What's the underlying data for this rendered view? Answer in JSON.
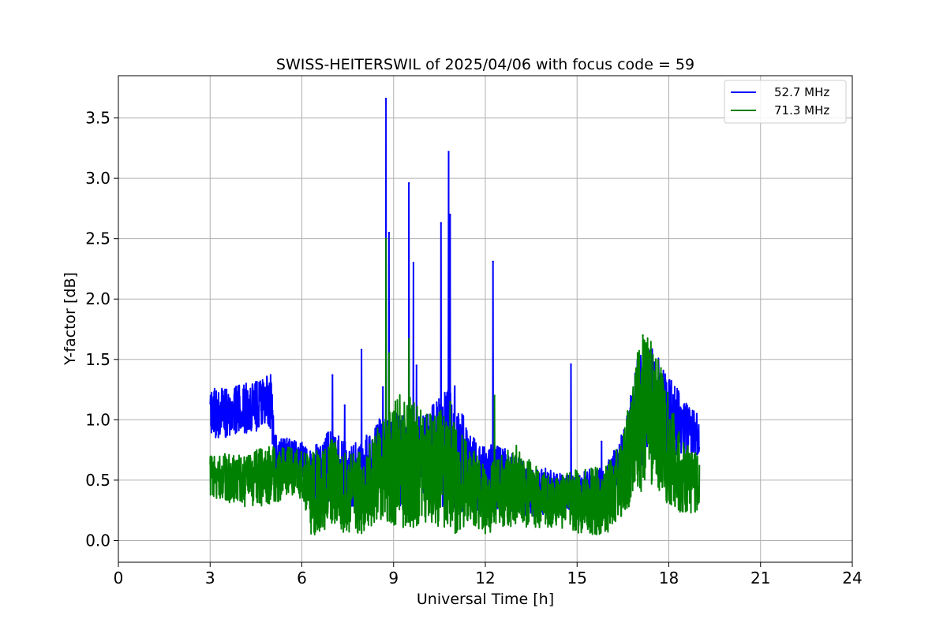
{
  "chart_data": {
    "type": "line",
    "title": "SWISS-HEITERSWIL of 2025/04/06 with focus code = 59",
    "xlabel": "Universal Time [h]",
    "ylabel": "Y-factor [dB]",
    "xlim": [
      0,
      24
    ],
    "ylim": [
      -0.18,
      3.85
    ],
    "xticks": [
      0,
      3,
      6,
      9,
      12,
      15,
      18,
      21,
      24
    ],
    "yticks": [
      0.0,
      0.5,
      1.0,
      1.5,
      2.0,
      2.5,
      3.0,
      3.5
    ],
    "xtick_labels": [
      "0",
      "3",
      "6",
      "9",
      "12",
      "15",
      "18",
      "21",
      "24"
    ],
    "ytick_labels": [
      "0.0",
      "0.5",
      "1.0",
      "1.5",
      "2.0",
      "2.5",
      "3.0",
      "3.5"
    ],
    "grid": true,
    "legend_position": "top-right",
    "series": [
      {
        "name": "52.7 MHz",
        "color": "#0000ff",
        "envelope": {
          "x": [
            3.0,
            3.5,
            4.0,
            4.5,
            5.0,
            5.1,
            5.5,
            6.0,
            6.2,
            6.5,
            7.0,
            7.5,
            8.0,
            8.5,
            9.0,
            9.5,
            10.0,
            10.5,
            11.0,
            11.5,
            12.0,
            12.5,
            13.0,
            13.5,
            14.0,
            14.5,
            15.0,
            15.5,
            16.0,
            16.5,
            17.0,
            17.5,
            18.0,
            18.5,
            19.0
          ],
          "low": [
            0.85,
            0.85,
            0.88,
            0.9,
            0.92,
            0.55,
            0.6,
            0.55,
            0.35,
            0.3,
            0.3,
            0.25,
            0.3,
            0.4,
            0.3,
            0.25,
            0.35,
            0.3,
            0.2,
            0.25,
            0.2,
            0.25,
            0.2,
            0.2,
            0.2,
            0.2,
            0.25,
            0.2,
            0.3,
            0.4,
            0.6,
            0.65,
            0.7,
            0.7,
            0.7
          ],
          "high": [
            1.25,
            1.28,
            1.3,
            1.32,
            1.38,
            0.88,
            0.85,
            0.82,
            0.75,
            0.8,
            0.95,
            0.8,
            0.85,
            1.0,
            1.1,
            1.0,
            1.05,
            1.2,
            1.3,
            0.9,
            0.8,
            0.8,
            0.7,
            0.6,
            0.6,
            0.55,
            0.55,
            0.6,
            0.65,
            0.9,
            1.55,
            1.6,
            1.4,
            1.15,
            1.05
          ]
        },
        "peaks": [
          [
            7.0,
            1.37
          ],
          [
            7.4,
            1.12
          ],
          [
            7.95,
            1.58
          ],
          [
            8.65,
            1.27
          ],
          [
            8.75,
            3.66
          ],
          [
            8.85,
            2.55
          ],
          [
            9.5,
            2.96
          ],
          [
            9.65,
            2.3
          ],
          [
            9.75,
            1.45
          ],
          [
            10.55,
            2.63
          ],
          [
            10.8,
            3.22
          ],
          [
            10.85,
            2.7
          ],
          [
            12.25,
            2.31
          ],
          [
            14.8,
            1.46
          ],
          [
            15.8,
            0.82
          ]
        ]
      },
      {
        "name": "71.3 MHz",
        "color": "#008000",
        "envelope": {
          "x": [
            3.0,
            3.5,
            4.0,
            4.5,
            5.0,
            5.5,
            6.0,
            6.3,
            6.5,
            7.0,
            7.5,
            8.0,
            8.5,
            9.0,
            9.5,
            10.0,
            10.5,
            11.0,
            11.5,
            12.0,
            12.5,
            13.0,
            13.5,
            14.0,
            14.5,
            15.0,
            15.5,
            16.0,
            16.5,
            17.0,
            17.5,
            18.0,
            18.5,
            19.0
          ],
          "low": [
            0.35,
            0.3,
            0.28,
            0.28,
            0.3,
            0.35,
            0.35,
            0.05,
            0.03,
            0.1,
            0.05,
            0.05,
            0.15,
            0.1,
            0.05,
            0.15,
            0.1,
            0.05,
            0.15,
            0.05,
            0.1,
            0.1,
            0.1,
            0.1,
            0.1,
            0.05,
            0.05,
            0.05,
            0.2,
            0.4,
            0.4,
            0.3,
            0.2,
            0.25
          ],
          "high": [
            0.7,
            0.72,
            0.72,
            0.75,
            0.78,
            0.78,
            0.75,
            0.7,
            0.8,
            0.85,
            0.7,
            0.75,
            0.95,
            1.15,
            1.3,
            1.05,
            1.1,
            1.0,
            0.8,
            0.6,
            0.7,
            0.8,
            0.65,
            0.55,
            0.55,
            0.6,
            0.6,
            0.65,
            0.85,
            1.65,
            1.7,
            1.2,
            0.8,
            0.75
          ]
        },
        "peaks": [
          [
            8.75,
            2.5
          ],
          [
            8.85,
            1.55
          ],
          [
            9.5,
            1.67
          ],
          [
            10.85,
            1.15
          ],
          [
            12.3,
            1.2
          ],
          [
            17.15,
            1.7
          ]
        ]
      }
    ]
  }
}
